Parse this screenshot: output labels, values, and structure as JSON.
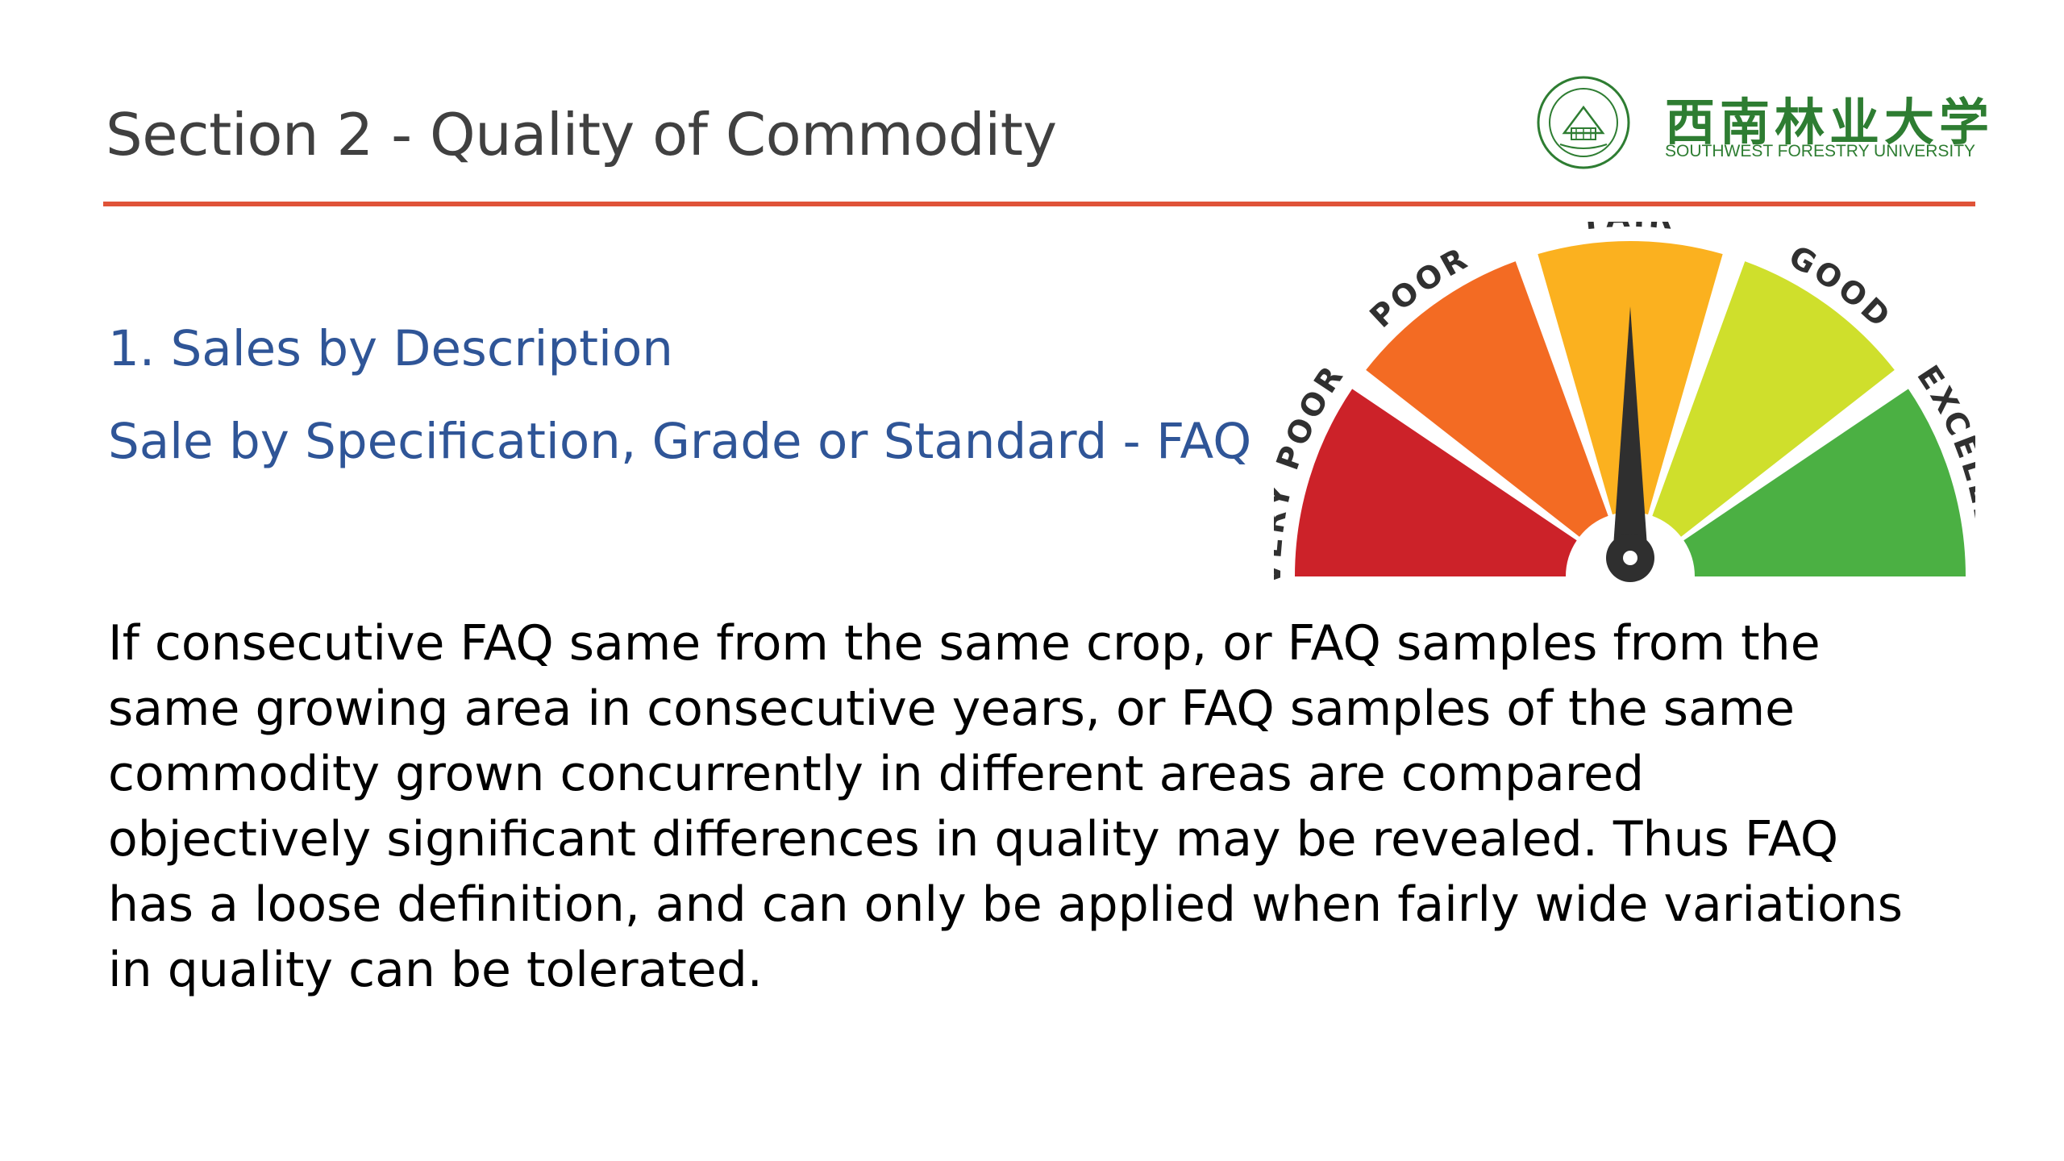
{
  "header": {
    "title": "Section 2 - Quality of Commodity",
    "rule_color": "#e05338"
  },
  "logo": {
    "name_cn": "西南林业大学",
    "name_en": "SOUTHWEST FORESTRY UNIVERSITY",
    "color": "#2e7d32",
    "icon": "university-seal-icon"
  },
  "subheadings": [
    "1. Sales by Description",
    "Sale by Specification, Grade or Standard - FAQ"
  ],
  "body": {
    "lines": [
      "If consecutive FAQ same from the same crop, or FAQ samples from the",
      "same growing area in consecutive years, or FAQ samples of the same",
      "commodity grown concurrently in different areas are compared",
      "objectively significant differences in quality may be revealed. Thus FAQ",
      "has a loose definition, and can only be applied when fairly wide variations",
      "in quality can be tolerated."
    ]
  },
  "gauge": {
    "segments": [
      {
        "label": "VERY POOR",
        "color": "#cc2229"
      },
      {
        "label": "POOR",
        "color": "#f36b23"
      },
      {
        "label": "FAIR",
        "color": "#fbb11f"
      },
      {
        "label": "GOOD",
        "color": "#cfdf2c"
      },
      {
        "label": "EXCELLENT",
        "color": "#4bb043"
      }
    ],
    "selected": "FAIR",
    "needle_color": "#2f2f2f"
  }
}
